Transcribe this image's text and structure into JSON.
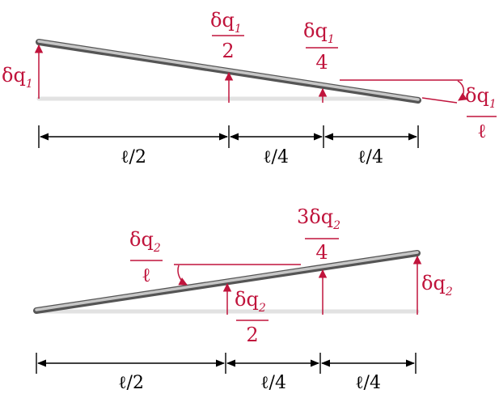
{
  "colors": {
    "accent": "#c0143c",
    "bar": "#9a9a9a",
    "dimension": "#000000"
  },
  "top": {
    "left_label": {
      "main": "δq",
      "sub": "1"
    },
    "mid_label": {
      "main": "δq",
      "sub": "1",
      "den": "2"
    },
    "quarter_label": {
      "main": "δq",
      "sub": "1",
      "den": "4"
    },
    "slope_label": {
      "main": "δq",
      "sub": "1",
      "den": "ℓ"
    },
    "dims": [
      "ℓ/2",
      "ℓ/4",
      "ℓ/4"
    ]
  },
  "bottom": {
    "slope_label": {
      "main": "δq",
      "sub": "2",
      "den": "ℓ"
    },
    "three_quarter_label": {
      "main": "3δq",
      "sub": "2",
      "den": "4"
    },
    "mid_label": {
      "main": "δq",
      "sub": "2",
      "den": "2"
    },
    "right_label": {
      "main": "δq",
      "sub": "2"
    },
    "dims": [
      "ℓ/2",
      "ℓ/4",
      "ℓ/4"
    ]
  }
}
